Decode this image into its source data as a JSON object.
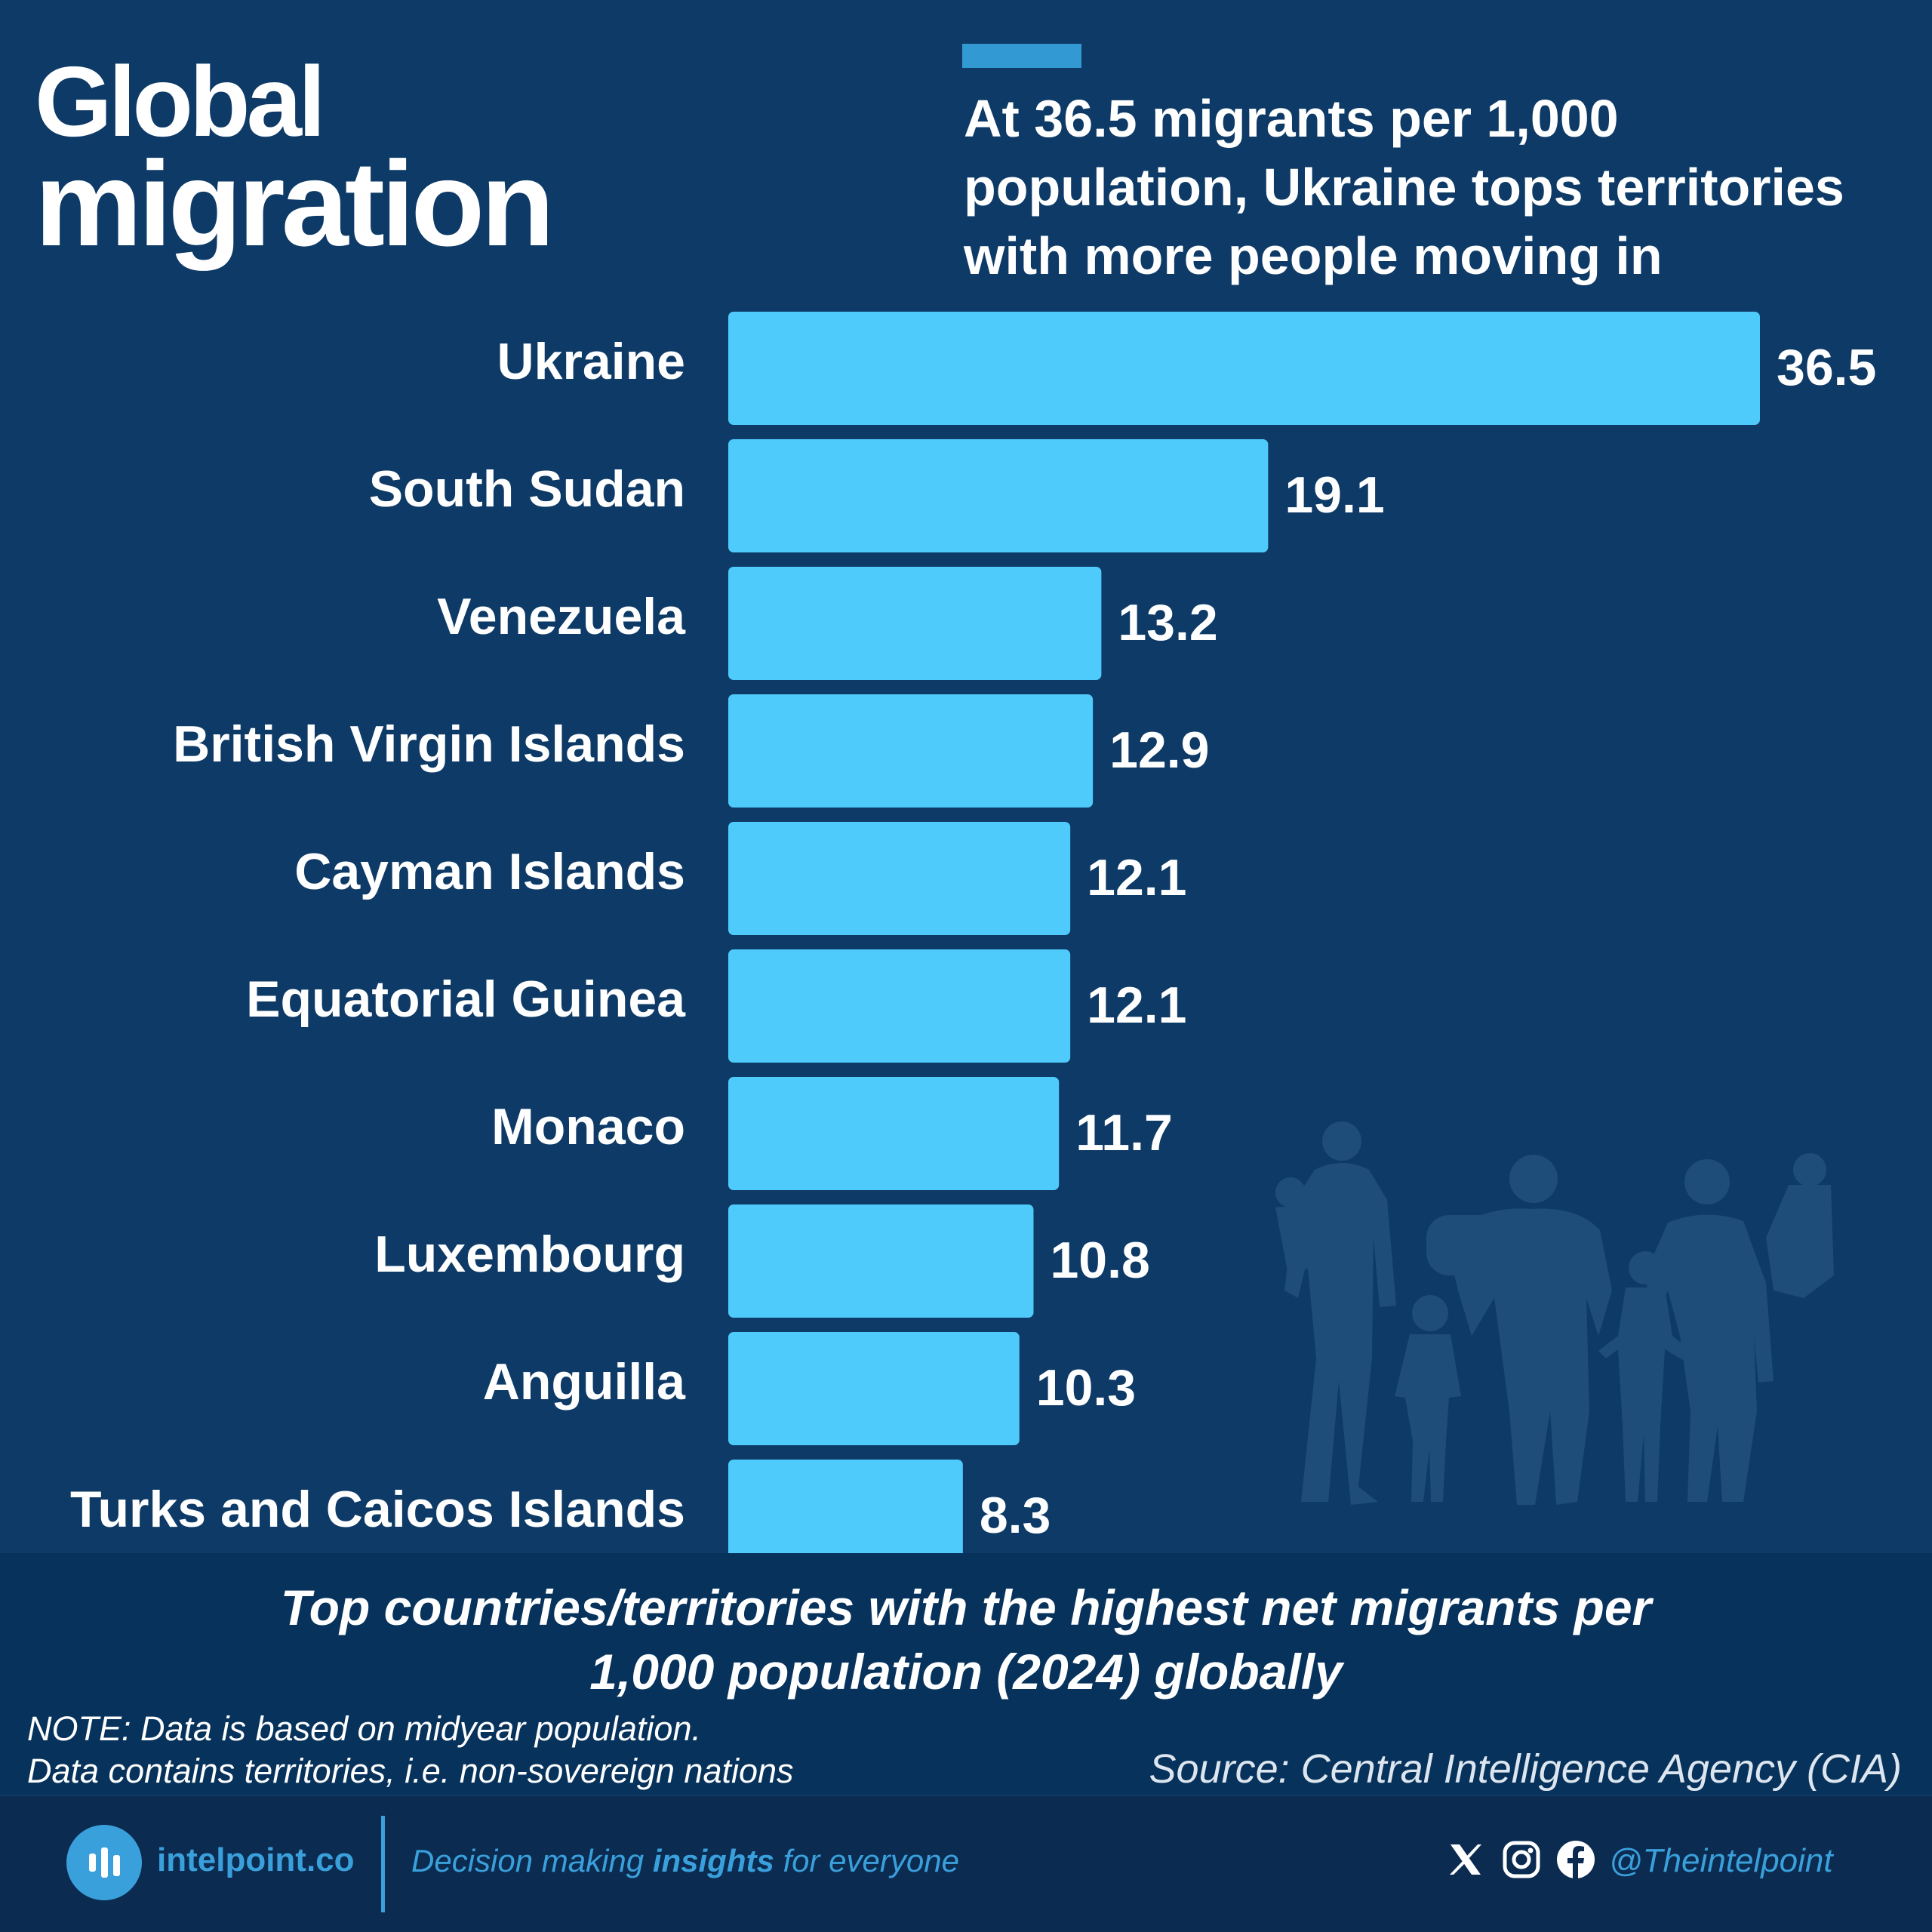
{
  "header": {
    "title_line1": "Global",
    "title_line2": "migration",
    "subtitle": "At 36.5 migrants per 1,000 population, Ukraine tops territories with more people moving in"
  },
  "colors": {
    "background": "#0d3a66",
    "bar": "#4ecbfb",
    "accent": "#3399d3",
    "caption_band": "#06325c",
    "footer": "#0b2b50",
    "brand": "#3aa0dc",
    "silhouette": "#1f4d7a"
  },
  "chart_data": {
    "type": "bar",
    "orientation": "horizontal",
    "categories": [
      "Ukraine",
      "South Sudan",
      "Venezuela",
      "British Virgin Islands",
      "Cayman Islands",
      "Equatorial Guinea",
      "Monaco",
      "Luxembourg",
      "Anguilla",
      "Turks and Caicos Islands"
    ],
    "values": [
      36.5,
      19.1,
      13.2,
      12.9,
      12.1,
      12.1,
      11.7,
      10.8,
      10.3,
      8.3
    ],
    "value_labels": [
      "36.5",
      "19.1",
      "13.2",
      "12.9",
      "12.1",
      "12.1",
      "11.7",
      "10.8",
      "10.3",
      "8.3"
    ],
    "xlim": [
      0,
      36.5
    ],
    "grid": false,
    "legend": "none"
  },
  "caption": {
    "line1": "Top countries/territories with the highest net migrants per",
    "line2": "1,000 population (2024) globally"
  },
  "notes": {
    "line1": "NOTE: Data is based on midyear population.",
    "line2": "Data contains territories, i.e. non-sovereign nations"
  },
  "source": "Source: Central Intelligence Agency (CIA)",
  "footer": {
    "brand": "intelpoint.co",
    "tagline_before": "Decision making ",
    "tagline_bold": "insights",
    "tagline_after": " for everyone",
    "handle": "@Theintelpoint",
    "icons": [
      "logo-icon",
      "x-icon",
      "instagram-icon",
      "facebook-icon"
    ]
  }
}
